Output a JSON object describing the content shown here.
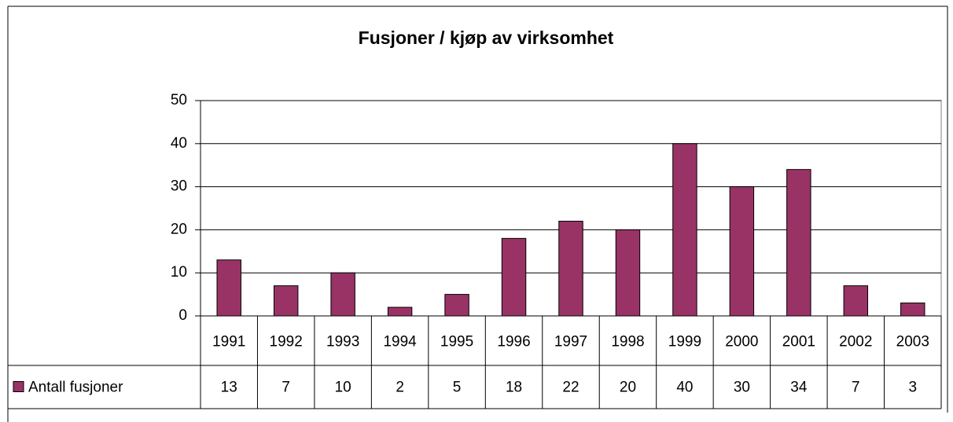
{
  "chart_data": {
    "type": "bar",
    "title": "Fusjoner / kjøp av virksomhet",
    "categories": [
      "1991",
      "1992",
      "1993",
      "1994",
      "1995",
      "1996",
      "1997",
      "1998",
      "1999",
      "2000",
      "2001",
      "2002",
      "2003"
    ],
    "series": [
      {
        "name": "Antall fusjoner",
        "color": "#993366",
        "values": [
          13,
          7,
          10,
          2,
          5,
          18,
          22,
          20,
          40,
          30,
          34,
          7,
          3
        ]
      }
    ],
    "ylim": [
      0,
      50
    ],
    "yticks": [
      0,
      10,
      20,
      30,
      40,
      50
    ],
    "grid": true
  }
}
